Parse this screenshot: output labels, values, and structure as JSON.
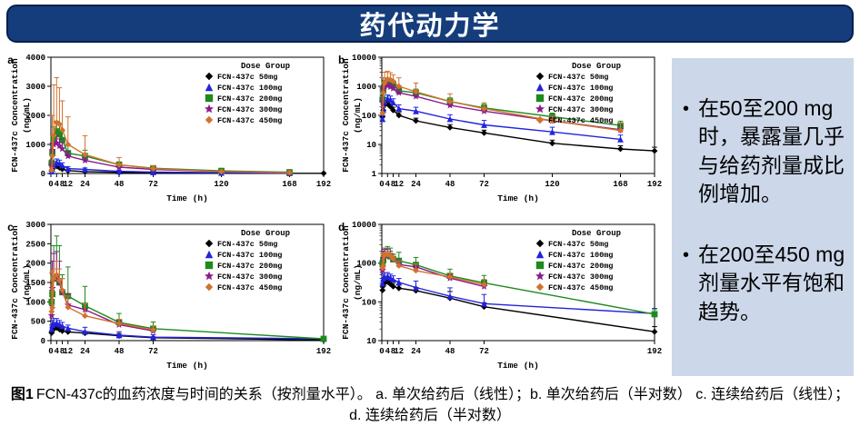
{
  "title": "药代动力学",
  "sidebar": {
    "bullets": [
      "在50至200 mg时，暴露量几乎与给药剂量成比例增加。",
      "在200至450 mg剂量水平有饱和趋势。"
    ]
  },
  "caption": {
    "label": "图1",
    "text": "FCN-437c的血药浓度与时间的关系（按剂量水平）。 a. 单次给药后（线性）；b. 单次给药后（半对数） c. 连续给药后（线性）；d. 连续给药后（半对数）"
  },
  "legend_title": "Dose Group",
  "dose_groups": [
    {
      "label": "FCN-437c 50mg",
      "color": "#000000",
      "marker": "diamond"
    },
    {
      "label": "FCN-437c 100mg",
      "color": "#2323dd",
      "marker": "triangle"
    },
    {
      "label": "FCN-437c 200mg",
      "color": "#1e8a1e",
      "marker": "square"
    },
    {
      "label": "FCN-437c 300mg",
      "color": "#8b1a8b",
      "marker": "star"
    },
    {
      "label": "FCN-437c 450mg",
      "color": "#d2722d",
      "marker": "diamond"
    }
  ],
  "chart_data": [
    {
      "id": "a",
      "type": "line",
      "yscale": "linear",
      "xlabel": "Time (h)",
      "ylabel": "FCN-437c Concentration (ng/mL)",
      "ylim": [
        0,
        4000
      ],
      "yticks": [
        0,
        1000,
        2000,
        3000,
        4000
      ],
      "xlim": [
        0,
        192
      ],
      "xticks": [
        0,
        4,
        8,
        12,
        24,
        48,
        72,
        120,
        168,
        192
      ],
      "x": [
        0.5,
        1,
        2,
        4,
        6,
        8,
        12,
        24,
        48,
        72,
        120,
        168,
        192
      ],
      "series": [
        {
          "name": "FCN-437c 50mg",
          "values": [
            90,
            150,
            230,
            250,
            200,
            150,
            100,
            65,
            38,
            25,
            11,
            7,
            6
          ],
          "err": [
            25,
            40,
            60,
            70,
            55,
            40,
            25,
            15,
            10,
            6,
            3,
            2,
            2
          ]
        },
        {
          "name": "FCN-437c 100mg",
          "values": [
            75,
            160,
            300,
            380,
            350,
            280,
            170,
            140,
            75,
            47,
            27,
            15,
            null
          ],
          "err": [
            25,
            60,
            110,
            120,
            110,
            90,
            60,
            50,
            30,
            20,
            12,
            6,
            null
          ]
        },
        {
          "name": "FCN-437c 200mg",
          "values": [
            350,
            700,
            1200,
            1450,
            1350,
            1150,
            700,
            600,
            300,
            180,
            90,
            45,
            null
          ],
          "err": [
            120,
            250,
            400,
            350,
            330,
            300,
            250,
            200,
            100,
            60,
            30,
            18,
            null
          ]
        },
        {
          "name": "FCN-437c 300mg",
          "values": [
            300,
            800,
            1000,
            1050,
            950,
            850,
            600,
            450,
            220,
            140,
            65,
            32,
            null
          ],
          "err": [
            100,
            250,
            280,
            260,
            240,
            210,
            160,
            120,
            60,
            40,
            20,
            12,
            null
          ]
        },
        {
          "name": "FCN-437c 450mg",
          "values": [
            120,
            600,
            1300,
            1750,
            1700,
            1500,
            1000,
            650,
            300,
            170,
            65,
            30,
            null
          ],
          "err": [
            80,
            1400,
            1750,
            1550,
            1250,
            1000,
            950,
            650,
            250,
            100,
            30,
            25,
            null
          ]
        }
      ]
    },
    {
      "id": "b",
      "type": "line",
      "yscale": "log",
      "xlabel": "Time (h)",
      "ylabel": "FCN-437c Concentration (ng/mL)",
      "ylim": [
        1,
        10000
      ],
      "yticks": [
        1,
        10,
        100,
        1000,
        10000
      ],
      "xlim": [
        0,
        192
      ],
      "xticks": [
        0,
        4,
        8,
        12,
        24,
        48,
        72,
        120,
        168,
        192
      ],
      "x": [
        0.5,
        1,
        2,
        4,
        6,
        8,
        12,
        24,
        48,
        72,
        120,
        168,
        192
      ],
      "series": [
        {
          "name": "FCN-437c 50mg",
          "values": [
            90,
            150,
            230,
            250,
            200,
            150,
            100,
            65,
            38,
            25,
            11,
            7,
            6
          ],
          "err": [
            25,
            40,
            60,
            70,
            55,
            40,
            25,
            15,
            10,
            6,
            3,
            2,
            2
          ]
        },
        {
          "name": "FCN-437c 100mg",
          "values": [
            75,
            160,
            300,
            380,
            350,
            280,
            170,
            140,
            75,
            47,
            27,
            15,
            null
          ],
          "err": [
            25,
            60,
            110,
            120,
            110,
            90,
            60,
            50,
            30,
            20,
            12,
            6,
            null
          ]
        },
        {
          "name": "FCN-437c 200mg",
          "values": [
            350,
            700,
            1200,
            1450,
            1350,
            1150,
            700,
            600,
            300,
            180,
            90,
            45,
            null
          ],
          "err": [
            120,
            250,
            400,
            350,
            330,
            300,
            250,
            200,
            100,
            60,
            30,
            18,
            null
          ]
        },
        {
          "name": "FCN-437c 300mg",
          "values": [
            300,
            800,
            1000,
            1050,
            950,
            850,
            600,
            450,
            220,
            140,
            65,
            32,
            null
          ],
          "err": [
            100,
            250,
            280,
            260,
            240,
            210,
            160,
            120,
            60,
            40,
            20,
            12,
            null
          ]
        },
        {
          "name": "FCN-437c 450mg",
          "values": [
            120,
            600,
            1300,
            1750,
            1700,
            1500,
            1000,
            650,
            300,
            170,
            65,
            30,
            null
          ],
          "err": [
            80,
            1400,
            1750,
            1550,
            1250,
            1000,
            950,
            650,
            250,
            100,
            30,
            25,
            null
          ]
        }
      ]
    },
    {
      "id": "c",
      "type": "line",
      "yscale": "linear",
      "xlabel": "Time (h)",
      "ylabel": "FCN-437c Concentration (ng/mL)",
      "ylim": [
        0,
        3000
      ],
      "yticks": [
        0,
        500,
        1000,
        1500,
        2000,
        2500,
        3000
      ],
      "xlim": [
        0,
        192
      ],
      "xticks": [
        0,
        4,
        8,
        12,
        24,
        48,
        72,
        192
      ],
      "x": [
        0.5,
        1,
        2,
        4,
        6,
        8,
        12,
        24,
        48,
        72,
        192
      ],
      "series": [
        {
          "name": "FCN-437c 50mg",
          "values": [
            200,
            260,
            310,
            330,
            290,
            250,
            225,
            195,
            125,
            75,
            17
          ],
          "err": [
            40,
            50,
            60,
            70,
            60,
            50,
            45,
            40,
            60,
            20,
            6
          ]
        },
        {
          "name": "FCN-437c 100mg",
          "values": [
            300,
            400,
            440,
            460,
            420,
            380,
            320,
            235,
            140,
            90,
            50
          ],
          "err": [
            100,
            120,
            130,
            110,
            100,
            90,
            80,
            110,
            90,
            65,
            18
          ]
        },
        {
          "name": "FCN-437c 200mg",
          "values": [
            1000,
            1200,
            1600,
            1600,
            1500,
            1250,
            1150,
            900,
            470,
            310,
            48
          ],
          "err": [
            300,
            350,
            850,
            1100,
            950,
            450,
            750,
            500,
            230,
            170,
            15
          ]
        },
        {
          "name": "FCN-437c 300mg",
          "values": [
            650,
            1350,
            1600,
            1650,
            1500,
            1250,
            920,
            800,
            410,
            250,
            null
          ],
          "err": [
            250,
            700,
            650,
            650,
            550,
            350,
            280,
            150,
            90,
            50,
            null
          ]
        },
        {
          "name": "FCN-437c 450mg",
          "values": [
            750,
            850,
            1600,
            1700,
            1550,
            1300,
            860,
            640,
            440,
            280,
            null
          ],
          "err": [
            1000,
            950,
            250,
            350,
            300,
            300,
            290,
            310,
            110,
            100,
            null
          ]
        }
      ]
    },
    {
      "id": "d",
      "type": "line",
      "yscale": "log",
      "xlabel": "Time (h)",
      "ylabel": "FCN-437c Concentration (ng/mL)",
      "ylim": [
        10,
        10000
      ],
      "yticks": [
        10,
        100,
        1000,
        10000
      ],
      "xlim": [
        0,
        192
      ],
      "xticks": [
        0,
        4,
        8,
        12,
        24,
        48,
        72,
        192
      ],
      "x": [
        0.5,
        1,
        2,
        4,
        6,
        8,
        12,
        24,
        48,
        72,
        192
      ],
      "series": [
        {
          "name": "FCN-437c 50mg",
          "values": [
            200,
            260,
            310,
            330,
            290,
            250,
            225,
            195,
            125,
            75,
            17
          ],
          "err": [
            40,
            50,
            60,
            70,
            60,
            50,
            45,
            40,
            60,
            20,
            6
          ]
        },
        {
          "name": "FCN-437c 100mg",
          "values": [
            300,
            400,
            440,
            460,
            420,
            380,
            320,
            235,
            140,
            90,
            50
          ],
          "err": [
            100,
            120,
            130,
            110,
            100,
            90,
            80,
            110,
            90,
            65,
            18
          ]
        },
        {
          "name": "FCN-437c 200mg",
          "values": [
            1000,
            1200,
            1600,
            1600,
            1500,
            1250,
            1150,
            900,
            470,
            310,
            48
          ],
          "err": [
            300,
            350,
            850,
            1100,
            950,
            450,
            750,
            500,
            230,
            170,
            15
          ]
        },
        {
          "name": "FCN-437c 300mg",
          "values": [
            650,
            1350,
            1600,
            1650,
            1500,
            1250,
            920,
            800,
            410,
            250,
            null
          ],
          "err": [
            250,
            700,
            650,
            650,
            550,
            350,
            280,
            150,
            90,
            50,
            null
          ]
        },
        {
          "name": "FCN-437c 450mg",
          "values": [
            750,
            850,
            1600,
            1700,
            1550,
            1300,
            860,
            640,
            440,
            280,
            null
          ],
          "err": [
            1000,
            950,
            250,
            350,
            300,
            300,
            290,
            310,
            110,
            100,
            null
          ]
        }
      ]
    }
  ]
}
